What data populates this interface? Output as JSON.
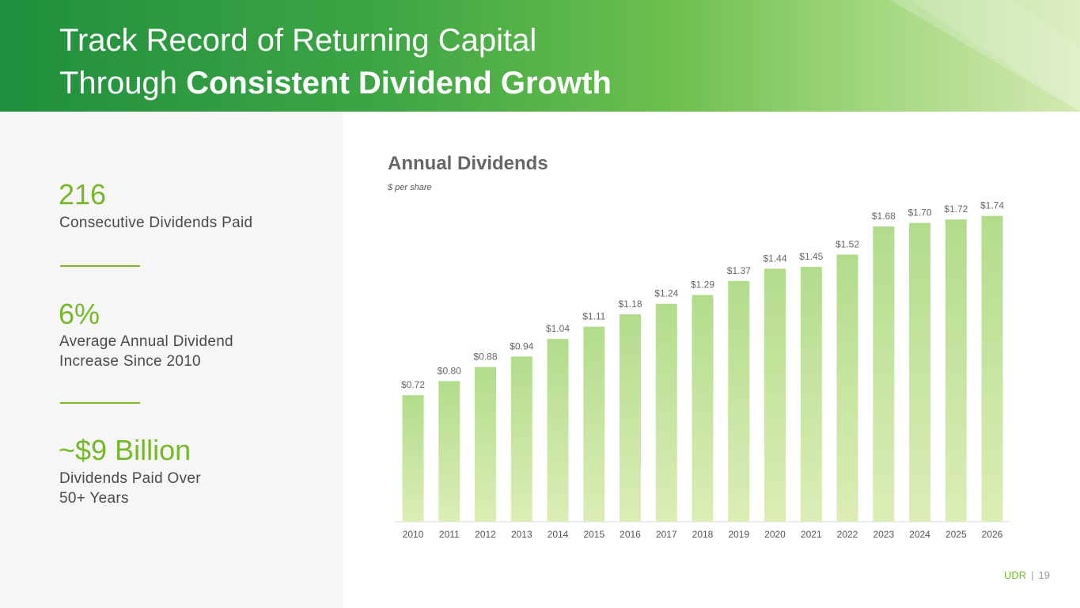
{
  "header": {
    "title_line1": "Track Record of Returning Capital",
    "title_line2_regular": "Through ",
    "title_line2_bold": "Consistent Dividend Growth"
  },
  "stats": [
    {
      "value": "216",
      "label": "Consecutive Dividends Paid"
    },
    {
      "value": "6%",
      "label": "Average Annual Dividend\nIncrease Since 2010"
    },
    {
      "value": "~$9 Billion",
      "label": "Dividends Paid Over\n50+ Years"
    }
  ],
  "chart_data": {
    "type": "bar",
    "title": "Annual Dividends",
    "subtitle": "$ per share",
    "categories": [
      "2010",
      "2011",
      "2012",
      "2013",
      "2014",
      "2015",
      "2016",
      "2017",
      "2018",
      "2019",
      "2020",
      "2021",
      "2022",
      "2023",
      "2024",
      "2025",
      "2026"
    ],
    "values": [
      0.72,
      0.8,
      0.88,
      0.94,
      1.04,
      1.11,
      1.18,
      1.24,
      1.29,
      1.37,
      1.44,
      1.45,
      1.52,
      1.68,
      1.7,
      1.72,
      1.74
    ],
    "labels": [
      "$0.72",
      "$0.80",
      "$0.88",
      "$0.94",
      "$1.04",
      "$1.11",
      "$1.18",
      "$1.24",
      "$1.29",
      "$1.37",
      "$1.44",
      "$1.45",
      "$1.52",
      "$1.68",
      "$1.70",
      "$1.72",
      "$1.74"
    ],
    "bar_color_top": "#b2dc8c",
    "bar_color_bottom": "#dcedb6",
    "grid": false
  },
  "footer": {
    "brand": "UDR",
    "separator": "|",
    "page": "19"
  },
  "colors": {
    "accent": "#76b82a",
    "header_dark": "#1f8f3e",
    "header_light": "#d4e9b2"
  }
}
